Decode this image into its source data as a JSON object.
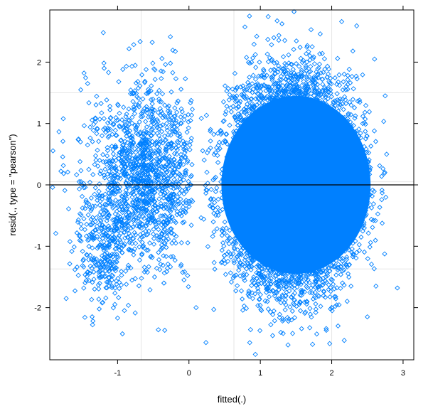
{
  "chart_data": {
    "type": "scatter",
    "xlabel": "fitted(.)",
    "ylabel": "resid(., type = \"pearson\")",
    "xlim": [
      -1.95,
      3.15
    ],
    "ylim": [
      -2.85,
      2.85
    ],
    "x_ticks": [
      -1,
      0,
      1,
      2,
      3
    ],
    "y_ticks": [
      -2,
      -1,
      0,
      1,
      2
    ],
    "x_tick_labels": [
      "-1",
      "0",
      "1",
      "2",
      "3"
    ],
    "y_tick_labels": [
      "-2",
      "-1",
      "0",
      "1",
      "2"
    ],
    "reference_line_y": 0,
    "grid_x": [
      -0.67,
      0.63,
      2.0
    ],
    "grid_y": [
      -1.37,
      0.05,
      1.5
    ],
    "grid": true,
    "marker": "open-diamond",
    "point_color": "#0080ff",
    "grid_color": "#e6e6e6",
    "clusters": [
      {
        "cx": -0.6,
        "cy": 0.15,
        "sx": 0.42,
        "sy": 0.75
      },
      {
        "cx": 1.45,
        "cy": 0.0,
        "sx": 0.55,
        "sy": 1.0
      },
      {
        "cx": -1.2,
        "cy": -1.1,
        "sx": 0.2,
        "sy": 0.45
      }
    ],
    "outliers": [
      [
        -1.2,
        2.48
      ],
      [
        2.35,
        2.59
      ],
      [
        -0.6,
        1.88
      ],
      [
        -0.05,
        1.73
      ],
      [
        0.55,
        1.57
      ],
      [
        2.6,
        2.05
      ],
      [
        2.75,
        1.45
      ],
      [
        2.92,
        -1.68
      ],
      [
        2.62,
        -1.65
      ],
      [
        -1.72,
        -1.85
      ],
      [
        -1.35,
        -2.28
      ],
      [
        -1.0,
        -2.17
      ],
      [
        1.32,
        -2.42
      ],
      [
        2.5,
        -2.15
      ],
      [
        0.95,
        2.42
      ],
      [
        -1.25,
        1.07
      ],
      [
        -1.52,
        0.7
      ],
      [
        -1.42,
        0.65
      ],
      [
        -0.35,
        -1.6
      ],
      [
        0.1,
        -2.0
      ]
    ]
  }
}
